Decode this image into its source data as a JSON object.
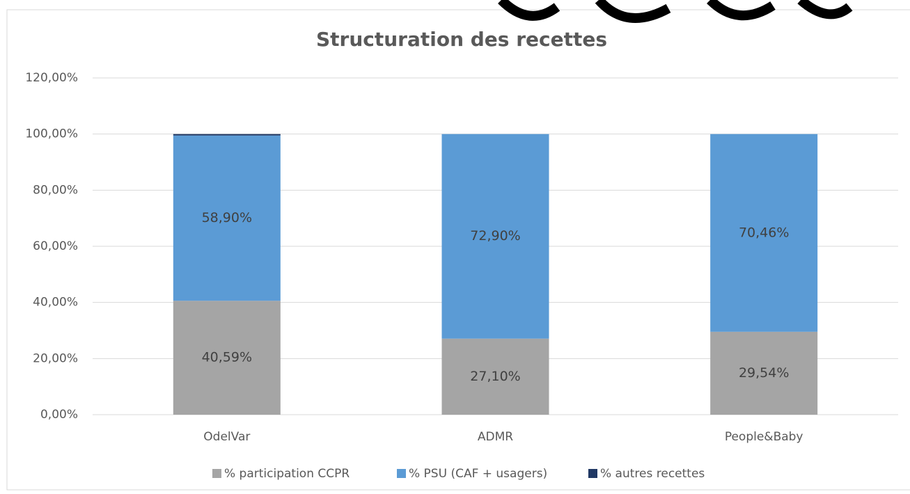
{
  "chart_data": {
    "type": "stacked_bar",
    "title": "Structuration des recettes",
    "categories": [
      "OdelVar",
      "ADMR",
      "People&Baby"
    ],
    "series": [
      {
        "name": "% participation CCPR",
        "color": "#a5a5a5",
        "values": [
          40.59,
          27.1,
          29.54
        ],
        "value_labels": [
          "40,59%",
          "27,10%",
          "29,54%"
        ]
      },
      {
        "name": "% PSU (CAF + usagers)",
        "color": "#5b9bd5",
        "values": [
          58.9,
          72.9,
          70.46
        ],
        "value_labels": [
          "58,90%",
          "72,90%",
          "70,46%"
        ]
      },
      {
        "name": "% autres recettes",
        "color": "#203864",
        "values": [
          0.51,
          0,
          0
        ]
      }
    ],
    "ylim": [
      0,
      120
    ],
    "yticks": [
      {
        "value": 0,
        "label": "0,00%"
      },
      {
        "value": 20,
        "label": "20,00%"
      },
      {
        "value": 40,
        "label": "40,00%"
      },
      {
        "value": 60,
        "label": "60,00%"
      },
      {
        "value": 80,
        "label": "80,00%"
      },
      {
        "value": 100,
        "label": "100,00%"
      },
      {
        "value": 120,
        "label": "120,00%"
      }
    ],
    "grid": true,
    "legend": "bottom"
  }
}
